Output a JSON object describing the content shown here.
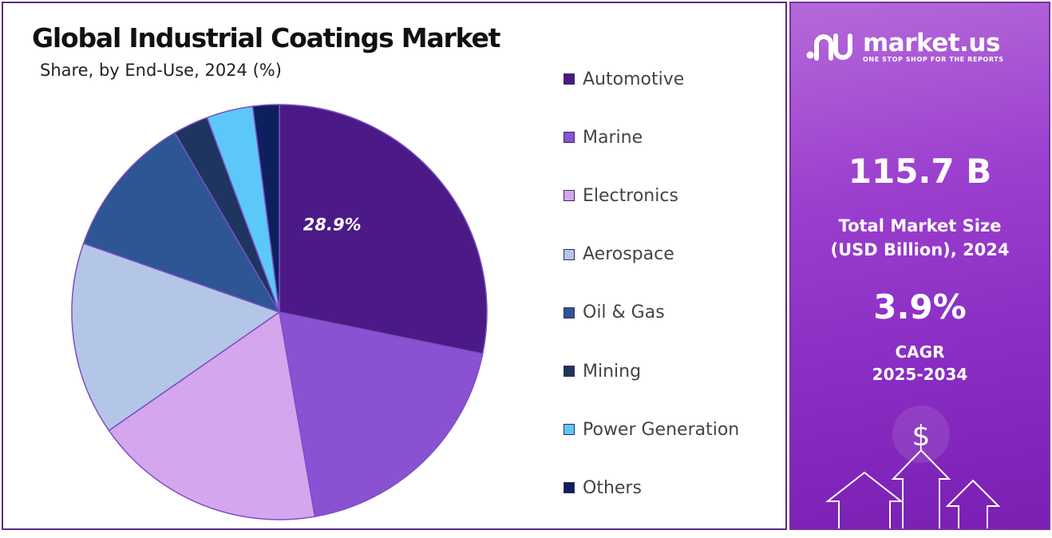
{
  "chart_data": {
    "type": "pie",
    "title": "Global Industrial Coatings Market",
    "subtitle": "Share, by End-Use, 2024 (%)",
    "categories": [
      "Automotive",
      "Marine",
      "Electronics",
      "Aerospace",
      "Oil & Gas",
      "Mining",
      "Power Generation",
      "Others"
    ],
    "values": [
      28.9,
      19.5,
      18.5,
      15.4,
      11.5,
      2.8,
      3.7,
      2.1
    ],
    "colors": [
      "#4b1a86",
      "#8a52d2",
      "#d4a6ee",
      "#b4c6e7",
      "#2e5594",
      "#1e3560",
      "#5cc8f8",
      "#0d1f5c"
    ],
    "data_labels": [
      {
        "category": "Automotive",
        "text": "28.9%"
      }
    ],
    "legend_position": "right"
  },
  "side_panel": {
    "brand_name": "market.us",
    "brand_tagline": "ONE STOP SHOP FOR THE REPORTS",
    "market_size_value": "115.7 B",
    "market_size_label_line1": "Total Market Size",
    "market_size_label_line2": "(USD Billion), 2024",
    "cagr_value": "3.9%",
    "cagr_label_line1": "CAGR",
    "cagr_label_line2": "2025-2034",
    "currency_symbol": "$"
  }
}
